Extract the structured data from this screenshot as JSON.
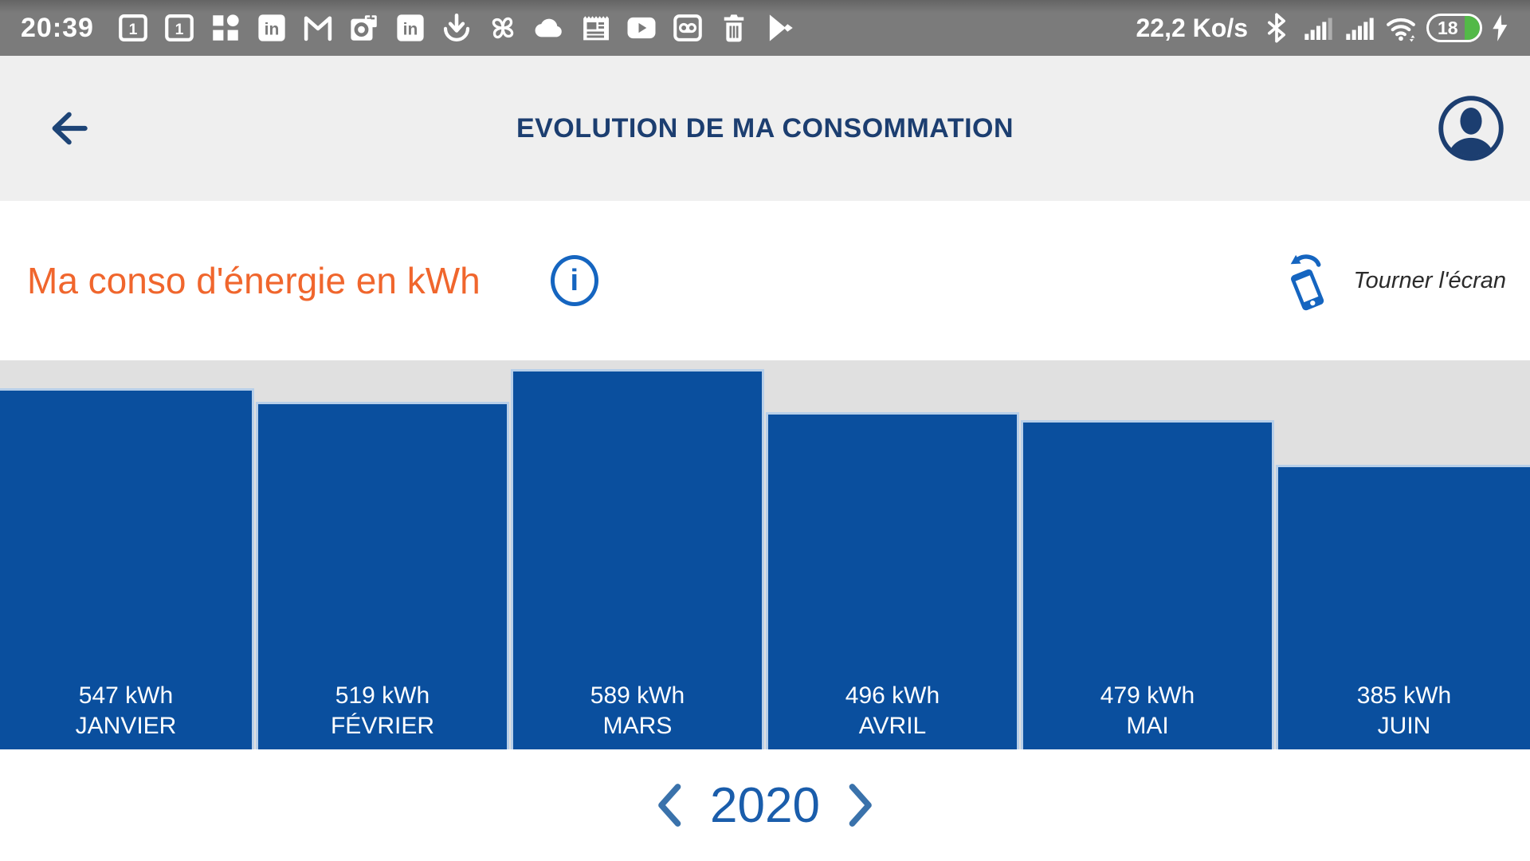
{
  "status_bar": {
    "time": "20:39",
    "notification_icons": [
      "calendar-icon",
      "calendar-icon",
      "widgets-icon",
      "linkedin-icon",
      "gmail-icon",
      "outlook-icon",
      "linkedin-icon",
      "download-icon",
      "fan-icon",
      "cloud-icon",
      "news-icon",
      "youtube-icon",
      "voicemail-icon",
      "trash-icon",
      "google-play-icon"
    ],
    "network_speed": "22,2 Ko/s",
    "battery_percent": "18"
  },
  "header": {
    "title": "EVOLUTION DE MA CONSOMMATION"
  },
  "section": {
    "title": "Ma conso d'énergie en kWh",
    "info_glyph": "i",
    "rotate_hint": "Tourner l'écran"
  },
  "chart_data": {
    "type": "bar",
    "title": "Ma conso d'énergie en kWh",
    "unit": "kWh",
    "categories": [
      "JANVIER",
      "FÉVRIER",
      "MARS",
      "AVRIL",
      "MAI",
      "JUIN"
    ],
    "values": [
      547,
      519,
      589,
      496,
      479,
      385
    ],
    "year": "2020",
    "bar_color": "#0a4f9e",
    "bar_edge_color": "#b7cfe9",
    "plot_background": "#e0e0e0",
    "label_color": "#ffffff",
    "orientation": "vertical",
    "legend": "none"
  }
}
